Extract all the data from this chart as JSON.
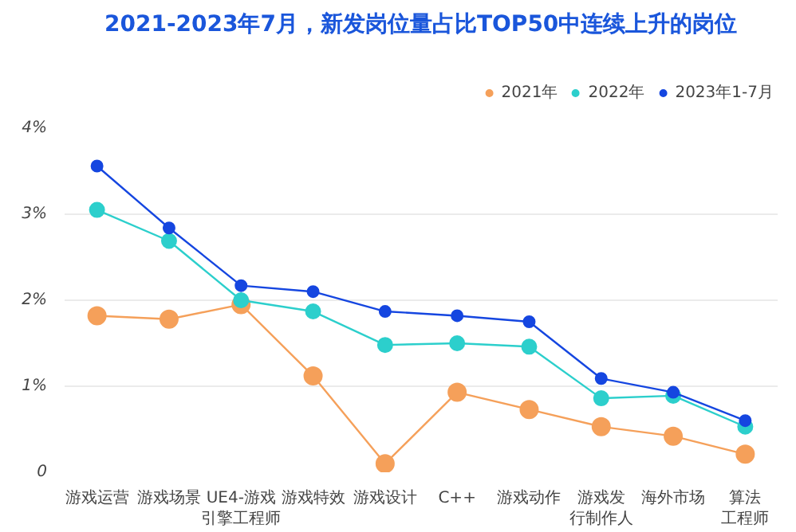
{
  "chart_data": {
    "type": "line",
    "title": "2021-2023年7月，新发岗位量占比TOP50中连续上升的岗位",
    "categories": [
      "游戏运营",
      "游戏场景",
      "UE4-游戏引擎工程师",
      "游戏特效",
      "游戏设计",
      "C++",
      "游戏动作",
      "游戏发行制作人",
      "海外市场",
      "算法工程师"
    ],
    "series": [
      {
        "name": "2021年",
        "color": "#f5a05a",
        "values": [
          1.82,
          1.78,
          1.95,
          1.12,
          0.1,
          0.93,
          0.73,
          0.53,
          0.42,
          0.21
        ]
      },
      {
        "name": "2022年",
        "color": "#2ccfcc",
        "values": [
          3.05,
          2.69,
          2.0,
          1.87,
          1.48,
          1.5,
          1.46,
          0.86,
          0.89,
          0.53
        ]
      },
      {
        "name": "2023年1-7月",
        "color": "#1546e0",
        "values": [
          3.56,
          2.84,
          2.17,
          2.1,
          1.87,
          1.82,
          1.75,
          1.09,
          0.93,
          0.6
        ]
      }
    ],
    "ylim": [
      0,
      4
    ],
    "yticks": [
      0,
      {
        "value": 1,
        "label": "1%"
      },
      {
        "value": 2,
        "label": "2%"
      },
      {
        "value": 3,
        "label": "3%"
      },
      {
        "value": 4,
        "label": "4%"
      }
    ],
    "grid": "y",
    "legend": "top right",
    "marker": "circle",
    "line_style": "solid"
  }
}
